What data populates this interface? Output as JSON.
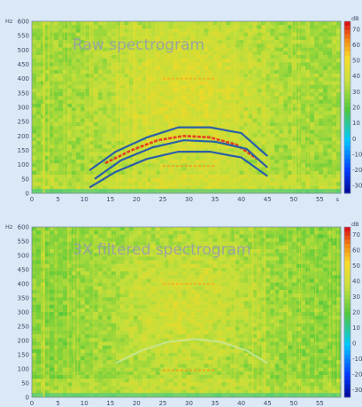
{
  "chart_data": [
    {
      "type": "heatmap",
      "title": "Raw spectrogram",
      "y_unit": "Hz",
      "x_unit": "s",
      "colorbar_unit": "dB",
      "x_ticks": [
        "0",
        "5",
        "10",
        "15",
        "20",
        "25",
        "30",
        "35",
        "40",
        "45",
        "50",
        "55"
      ],
      "y_ticks": [
        "0",
        "50",
        "100",
        "150",
        "200",
        "250",
        "300",
        "350",
        "400",
        "450",
        "500",
        "550",
        "600"
      ],
      "colorbar_ticks": [
        "70",
        "60",
        "50",
        "40",
        "30",
        "20",
        "10",
        "0",
        "-10",
        "-20",
        "-30"
      ],
      "xlim": [
        0,
        59
      ],
      "ylim": [
        0,
        600
      ],
      "clim": [
        -35,
        75
      ],
      "colors": {
        "background": "#6fc43a",
        "mid": "#d8e84a",
        "hot": "#f09020",
        "overlay": "#2a5fa8",
        "signal": "#e83020"
      },
      "overlay_lines": [
        {
          "x": [
            11,
            16,
            22,
            28,
            34,
            40,
            45
          ],
          "y": [
            80,
            145,
            195,
            230,
            230,
            210,
            130
          ]
        },
        {
          "x": [
            12,
            17,
            23,
            29,
            35,
            41,
            45
          ],
          "y": [
            50,
            115,
            160,
            185,
            180,
            155,
            90
          ]
        },
        {
          "x": [
            11,
            16,
            22,
            28,
            34,
            40,
            45
          ],
          "y": [
            20,
            75,
            120,
            145,
            145,
            125,
            60
          ]
        }
      ],
      "signal_curve": {
        "x": [
          14,
          19,
          24,
          29,
          34,
          39,
          43
        ],
        "y": [
          105,
          150,
          185,
          200,
          195,
          170,
          120
        ]
      }
    },
    {
      "type": "heatmap",
      "title": "3X filtered spectrogram",
      "y_unit": "Hz",
      "colorbar_unit": "dB",
      "x_ticks": [
        "0",
        "5",
        "10",
        "15",
        "20",
        "25",
        "30",
        "35",
        "40",
        "45",
        "50",
        "55"
      ],
      "y_ticks": [
        "0",
        "50",
        "100",
        "150",
        "200",
        "250",
        "300",
        "350",
        "400",
        "450",
        "500",
        "550",
        "600"
      ],
      "colorbar_ticks": [
        "70",
        "60",
        "50",
        "40",
        "30",
        "20",
        "10",
        "0",
        "-10",
        "-20",
        "-30"
      ],
      "xlim": [
        0,
        59
      ],
      "ylim": [
        0,
        600
      ],
      "clim": [
        -35,
        75
      ],
      "colors": {
        "background": "#6fc43a",
        "mid": "#d8e84a",
        "hot": "#f09020",
        "signal": "#c8e8a0"
      },
      "signal_curve": {
        "x": [
          16,
          21,
          26,
          31,
          36,
          41,
          45
        ],
        "y": [
          120,
          165,
          195,
          205,
          195,
          165,
          120
        ]
      }
    }
  ]
}
